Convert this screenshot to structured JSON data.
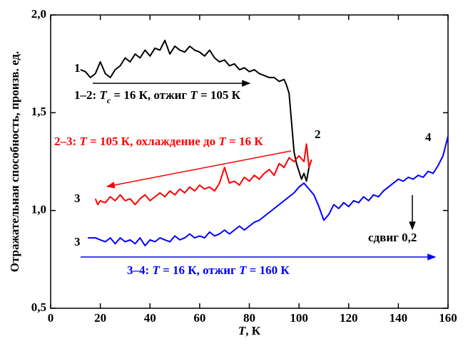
{
  "chart_data": {
    "type": "line",
    "xlabel": [
      {
        "text": "T",
        "italic": true
      },
      {
        "text": ", К"
      }
    ],
    "ylabel": "Отражательная способность, произв. ед.",
    "xlim": [
      0,
      160
    ],
    "xticks": [
      0,
      20,
      40,
      60,
      80,
      100,
      120,
      140,
      160
    ],
    "ylim": [
      0.5,
      2.0
    ],
    "yticks": [
      {
        "value": 0.5,
        "label": "0,5"
      },
      {
        "value": 1.0,
        "label": "1,0"
      },
      {
        "value": 1.5,
        "label": "1,5"
      },
      {
        "value": 2.0,
        "label": "2,0"
      }
    ],
    "series": [
      {
        "color": "#000000",
        "x": [
          12,
          14,
          16,
          18,
          20,
          22,
          24,
          26,
          28,
          30,
          32,
          34,
          36,
          38,
          40,
          42,
          44,
          46,
          48,
          50,
          52,
          54,
          56,
          58,
          60,
          62,
          64,
          66,
          68,
          70,
          72,
          74,
          76,
          78,
          80,
          82,
          84,
          86,
          88,
          90,
          92,
          94,
          95,
          96,
          97,
          98,
          99,
          100,
          101,
          102,
          103,
          104,
          105
        ],
        "values": [
          1.72,
          1.71,
          1.68,
          1.7,
          1.76,
          1.7,
          1.68,
          1.72,
          1.74,
          1.78,
          1.76,
          1.8,
          1.78,
          1.82,
          1.79,
          1.83,
          1.82,
          1.87,
          1.8,
          1.84,
          1.82,
          1.81,
          1.84,
          1.82,
          1.81,
          1.79,
          1.82,
          1.78,
          1.76,
          1.77,
          1.74,
          1.75,
          1.72,
          1.73,
          1.71,
          1.72,
          1.7,
          1.69,
          1.68,
          1.68,
          1.66,
          1.67,
          1.64,
          1.6,
          1.45,
          1.3,
          1.24,
          1.2,
          1.16,
          1.19,
          1.15,
          1.22,
          1.26
        ]
      },
      {
        "color": "#ff0000",
        "x": [
          18,
          19,
          20,
          22,
          24,
          26,
          28,
          30,
          32,
          34,
          36,
          38,
          40,
          42,
          44,
          46,
          48,
          50,
          52,
          54,
          56,
          58,
          60,
          62,
          64,
          66,
          68,
          70,
          72,
          74,
          76,
          78,
          80,
          82,
          84,
          86,
          88,
          90,
          92,
          94,
          96,
          98,
          100,
          102,
          103,
          104,
          105
        ],
        "values": [
          1.06,
          1.03,
          1.05,
          1.04,
          1.07,
          1.05,
          1.08,
          1.05,
          1.06,
          1.03,
          1.06,
          1.08,
          1.05,
          1.07,
          1.09,
          1.07,
          1.1,
          1.08,
          1.11,
          1.09,
          1.12,
          1.1,
          1.13,
          1.11,
          1.12,
          1.1,
          1.14,
          1.22,
          1.14,
          1.15,
          1.13,
          1.17,
          1.15,
          1.18,
          1.16,
          1.19,
          1.21,
          1.18,
          1.24,
          1.22,
          1.27,
          1.25,
          1.28,
          1.25,
          1.34,
          1.22,
          1.26
        ]
      },
      {
        "color": "#0000ff",
        "x": [
          15,
          18,
          20,
          22,
          24,
          26,
          28,
          30,
          32,
          34,
          36,
          38,
          40,
          42,
          44,
          46,
          48,
          50,
          52,
          54,
          56,
          58,
          60,
          62,
          64,
          66,
          68,
          70,
          72,
          74,
          76,
          78,
          80,
          82,
          84,
          86,
          88,
          90,
          92,
          94,
          96,
          98,
          100,
          102,
          104,
          106,
          108,
          110,
          112,
          114,
          116,
          118,
          120,
          122,
          124,
          126,
          128,
          130,
          132,
          134,
          136,
          138,
          140,
          142,
          144,
          146,
          148,
          150,
          152,
          154,
          156,
          158,
          160
        ],
        "values": [
          0.86,
          0.86,
          0.85,
          0.84,
          0.86,
          0.83,
          0.86,
          0.84,
          0.85,
          0.83,
          0.86,
          0.82,
          0.85,
          0.84,
          0.86,
          0.85,
          0.84,
          0.87,
          0.85,
          0.86,
          0.88,
          0.86,
          0.87,
          0.86,
          0.89,
          0.87,
          0.88,
          0.9,
          0.88,
          0.9,
          0.92,
          0.9,
          0.92,
          0.94,
          0.95,
          0.97,
          0.99,
          1.01,
          1.03,
          1.05,
          1.07,
          1.09,
          1.12,
          1.14,
          1.11,
          1.08,
          1.02,
          0.95,
          0.98,
          1.03,
          1.01,
          1.04,
          1.02,
          1.05,
          1.04,
          1.07,
          1.05,
          1.08,
          1.07,
          1.1,
          1.12,
          1.14,
          1.16,
          1.15,
          1.17,
          1.16,
          1.18,
          1.17,
          1.2,
          1.19,
          1.23,
          1.28,
          1.38
        ]
      }
    ],
    "annotations": [
      {
        "color": "#000000",
        "parts": [
          {
            "text": "1"
          }
        ]
      },
      {
        "color": "#000000",
        "parts": [
          {
            "text": "1–2: "
          },
          {
            "text": "T",
            "italic": true
          },
          {
            "text": "c",
            "italic": true,
            "sub": true
          },
          {
            "text": " = 16 К, отжиг "
          },
          {
            "text": "T",
            "italic": true
          },
          {
            "text": " = 105 К"
          }
        ]
      },
      {
        "color": "#ff0000",
        "parts": [
          {
            "text": "2–3: "
          },
          {
            "text": "T",
            "italic": true
          },
          {
            "text": " = 105 К, охлаждение до "
          },
          {
            "text": "T",
            "italic": true
          },
          {
            "text": " = 16 К"
          }
        ]
      },
      {
        "color": "#000000",
        "parts": [
          {
            "text": "2"
          }
        ]
      },
      {
        "color": "#000000",
        "parts": [
          {
            "text": "3"
          }
        ]
      },
      {
        "color": "#000000",
        "parts": [
          {
            "text": "3"
          }
        ]
      },
      {
        "color": "#000000",
        "parts": [
          {
            "text": "4"
          }
        ]
      },
      {
        "color": "#000000",
        "parts": [
          {
            "text": "сдвиг 0,2"
          }
        ]
      },
      {
        "color": "#0000ff",
        "parts": [
          {
            "text": "3–4: "
          },
          {
            "text": "T",
            "italic": true
          },
          {
            "text": " = 16 К, отжиг "
          },
          {
            "text": "T",
            "italic": true
          },
          {
            "text": " = 160 К"
          }
        ]
      }
    ]
  }
}
